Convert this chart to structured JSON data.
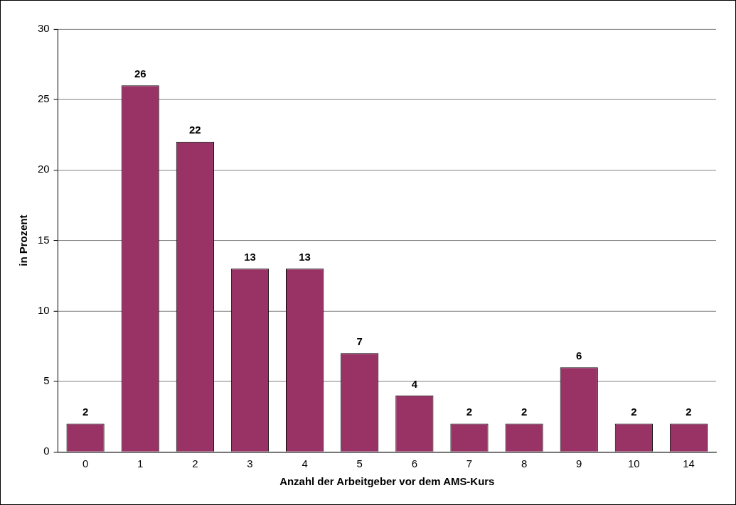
{
  "chart_data": {
    "type": "bar",
    "xlabel": "Anzahl der Arbeitgeber vor dem AMS-Kurs",
    "ylabel": "in Prozent",
    "categories": [
      "0",
      "1",
      "2",
      "3",
      "4",
      "5",
      "6",
      "7",
      "8",
      "9",
      "10",
      "14"
    ],
    "values": [
      2,
      26,
      22,
      13,
      13,
      7,
      4,
      2,
      2,
      6,
      2,
      2
    ],
    "color": "#993366",
    "ylim": [
      0,
      30
    ],
    "yticks": [
      0,
      5,
      10,
      15,
      20,
      25,
      30
    ],
    "grid": "y",
    "legend": false,
    "data_labels": true
  }
}
